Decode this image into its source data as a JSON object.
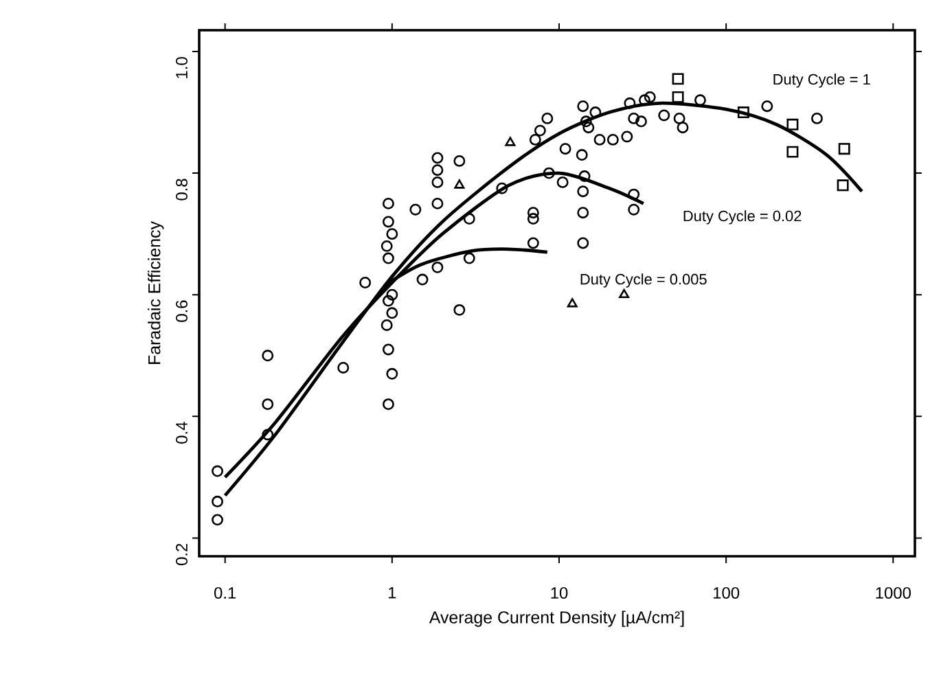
{
  "chart_data": {
    "type": "scatter",
    "xlabel": "Average Current Density [µA/cm²]",
    "ylabel": "Faradaic Efficiency",
    "log": "x",
    "grid": false,
    "xlim": [
      0.07,
      1350
    ],
    "xticks": [
      0.1,
      1,
      10,
      100,
      1000
    ],
    "ylim": [
      0.17,
      1.035
    ],
    "yticks": [
      0.2,
      0.4,
      0.6,
      {
        "value": 0.8,
        "label": "0.8"
      },
      {
        "value": 1.0,
        "label": "1.0"
      }
    ],
    "series": [
      {
        "marker": "circle",
        "color": "#000000",
        "x": [
          0.09,
          0.09,
          0.09,
          0.18,
          0.18,
          0.18,
          0.51,
          0.69,
          0.95,
          0.95,
          1.0,
          0.93,
          0.95,
          1.0,
          0.95,
          1.0,
          0.93,
          0.95,
          1.0,
          0.95,
          1.38,
          1.52,
          1.87,
          1.87,
          1.87,
          1.87,
          1.87,
          2.53,
          2.9,
          2.9,
          2.53,
          8.5,
          7.7,
          7.2,
          13.9,
          16.5,
          14.5,
          15,
          17.5,
          21,
          25.5,
          26.5,
          32.5,
          35,
          28,
          31,
          42.5,
          52.5,
          55,
          70,
          176,
          350,
          10.9,
          13.7,
          8.7,
          10.5,
          14.2,
          4.55,
          13.9,
          28,
          28,
          13.9,
          7,
          7,
          7,
          13.9
        ],
        "values": [
          0.31,
          0.26,
          0.23,
          0.5,
          0.42,
          0.37,
          0.48,
          0.62,
          0.75,
          0.72,
          0.7,
          0.68,
          0.66,
          0.6,
          0.59,
          0.57,
          0.55,
          0.51,
          0.47,
          0.42,
          0.74,
          0.625,
          0.825,
          0.805,
          0.785,
          0.75,
          0.645,
          0.82,
          0.725,
          0.66,
          0.575,
          0.89,
          0.87,
          0.855,
          0.91,
          0.9,
          0.885,
          0.875,
          0.855,
          0.855,
          0.86,
          0.915,
          0.92,
          0.925,
          0.89,
          0.885,
          0.895,
          0.89,
          0.875,
          0.92,
          0.91,
          0.89,
          0.84,
          0.83,
          0.8,
          0.785,
          0.795,
          0.775,
          0.77,
          0.765,
          0.74,
          0.735,
          0.735,
          0.725,
          0.685,
          0.685
        ]
      },
      {
        "marker": "triangle",
        "color": "#000000",
        "x": [
          2.53,
          5.1,
          12,
          24.5
        ],
        "values": [
          0.78,
          0.85,
          0.585,
          0.6
        ]
      },
      {
        "marker": "square",
        "color": "#000000",
        "x": [
          51.5,
          51.5,
          127,
          250,
          250,
          510,
          500
        ],
        "values": [
          0.955,
          0.925,
          0.9,
          0.88,
          0.835,
          0.84,
          0.78
        ]
      },
      {
        "type": "line",
        "name": "Duty Cycle = 1",
        "marker": "none",
        "line_style": "solid",
        "color": "#000000",
        "x": [
          0.1,
          0.2,
          0.5,
          1,
          2,
          5,
          10,
          20,
          40,
          100,
          200,
          400,
          650
        ],
        "values": [
          0.27,
          0.37,
          0.52,
          0.63,
          0.72,
          0.81,
          0.865,
          0.9,
          0.915,
          0.905,
          0.88,
          0.83,
          0.77
        ]
      },
      {
        "type": "line",
        "name": "Duty Cycle = 0.02",
        "marker": "none",
        "line_style": "solid",
        "color": "#000000",
        "x": [
          0.1,
          0.2,
          0.5,
          1,
          2,
          5,
          10,
          20,
          32
        ],
        "values": [
          0.3,
          0.39,
          0.53,
          0.62,
          0.7,
          0.78,
          0.8,
          0.775,
          0.75
        ]
      },
      {
        "type": "line",
        "name": "Duty Cycle = 0.005",
        "marker": "none",
        "line_style": "solid",
        "color": "#000000",
        "x": [
          0.9,
          1.5,
          3,
          5,
          8.5
        ],
        "values": [
          0.615,
          0.65,
          0.672,
          0.675,
          0.67
        ]
      }
    ]
  }
}
